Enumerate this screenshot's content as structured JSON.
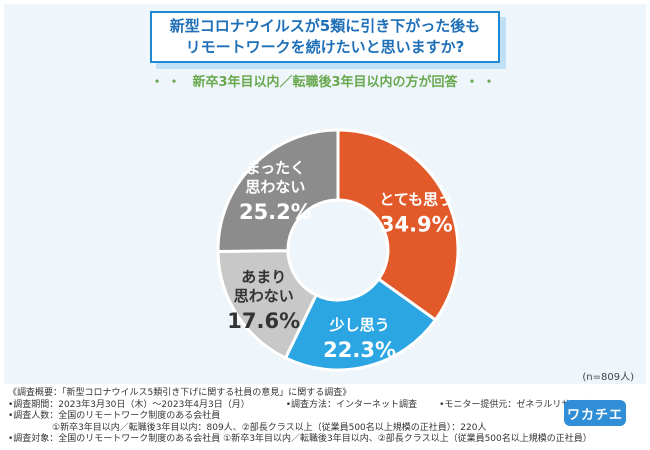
{
  "title_line1": "新型コロナウイルスが5類に引き下がった後も",
  "title_line2": "リモートワークを続けたいと思いますか?",
  "subtitle": "新卒3年目以内／転職後3年目以内の方が回答",
  "subtitle_dots": "・・",
  "n_label": "(n=809人)",
  "notes": {
    "line1": "《調査概要：「新型コロナウイルス5類引き下げに関する社員の意見」に関する調査》",
    "line2a": "•調査期間：2023年3月30日（木）〜2023年4月3日（月）",
    "line2b": "•調査方法：インターネット調査",
    "line2c": "•モニター提供元：ゼネラルリサーチ",
    "line3": "•調査人数：全国のリモートワーク制度のある会社員",
    "line4": "①新卒3年目以内／転職後3年目以内：809人、②部長クラス以上（従業員500名以上規模の正社員）：220人",
    "line5": "•調査対象：全国のリモートワーク制度のある会社員 ①新卒3年目以内／転職後3年目以内、②部長クラス以上（従業員500名以上規模の正社員）"
  },
  "logo_text": "ワカチエ",
  "chart_data": {
    "type": "pie",
    "donut": true,
    "slices": [
      {
        "label_lines": [
          "とても思う"
        ],
        "value": 34.9,
        "value_text": "34.9%",
        "color": "#e2592a",
        "label_color": "#ffffff"
      },
      {
        "label_lines": [
          "少し思う"
        ],
        "value": 22.3,
        "value_text": "22.3%",
        "color": "#2ba6e3",
        "label_color": "#ffffff"
      },
      {
        "label_lines": [
          "あまり",
          "思わない"
        ],
        "value": 17.6,
        "value_text": "17.6%",
        "color": "#c8c8c8",
        "label_color": "#333333"
      },
      {
        "label_lines": [
          "まったく",
          "思わない"
        ],
        "value": 25.2,
        "value_text": "25.2%",
        "color": "#8c8c8c",
        "label_color": "#ffffff"
      }
    ]
  }
}
